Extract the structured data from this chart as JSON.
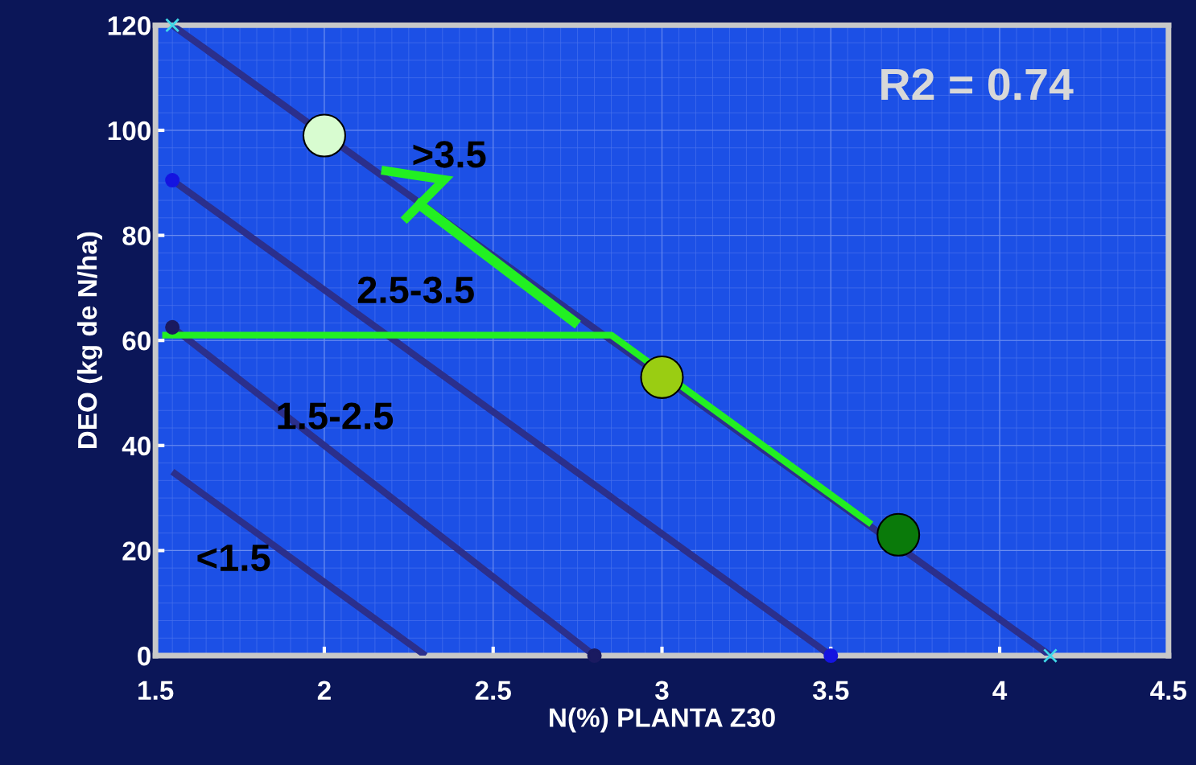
{
  "chart_data": {
    "type": "line",
    "xlabel": "N(%) PLANTA Z30",
    "ylabel": "DEO (kg de N/ha)",
    "xlim": [
      1.5,
      4.5
    ],
    "xticks": [
      1.5,
      2,
      2.5,
      3,
      3.5,
      4,
      4.5
    ],
    "ylim": [
      0,
      120
    ],
    "yticks": [
      0,
      20,
      40,
      60,
      80,
      100,
      120
    ],
    "grid": true,
    "legend": false,
    "series": [
      {
        "color": "#2b2f8c",
        "x": [
          1.55,
          4.15
        ],
        "values": [
          120,
          0
        ],
        "marker": "cross",
        "colors": [
          "#3fd8e8",
          "#3fd8e8"
        ]
      },
      {
        "color": "#2b2f8c",
        "x": [
          1.55,
          3.5
        ],
        "values": [
          90.5,
          0
        ],
        "marker": "circle",
        "colors": [
          "#1414e0",
          "#1414e0"
        ]
      },
      {
        "color": "#2b2f8c",
        "x": [
          1.55,
          2.8
        ],
        "values": [
          62.5,
          0
        ],
        "marker": "circle",
        "colors": [
          "#1a1a60",
          "#1a1a60"
        ]
      },
      {
        "color": "#2b2f8c",
        "x": [
          1.55,
          2.3
        ],
        "values": [
          35,
          0
        ],
        "marker": "none"
      },
      {
        "color": "#22f022",
        "x": [
          1.52,
          2.85,
          3.62
        ],
        "values": [
          61,
          61,
          25
        ],
        "marker": "none"
      },
      {
        "type": "scatter",
        "x": [
          2.0,
          3.0,
          3.7
        ],
        "values": [
          99,
          53,
          23
        ],
        "colors": [
          "#d8fcd0",
          "#9acd12",
          "#0a7a0a"
        ],
        "marker": "circle"
      }
    ],
    "annotations": [
      ">3.5",
      "2.5-3.5",
      "1.5-2.5",
      "<1.5",
      "R2 = 0.74"
    ]
  }
}
